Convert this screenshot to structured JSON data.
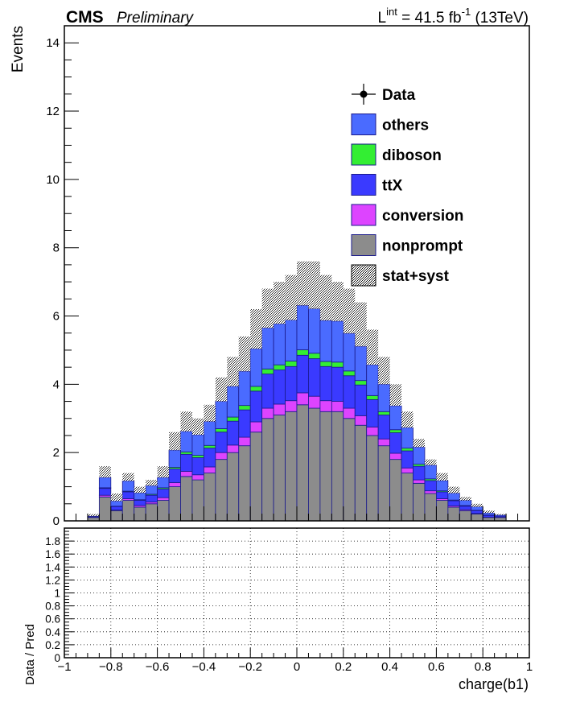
{
  "header": {
    "experiment": "CMS",
    "status": "Preliminary",
    "lumi_prefix": "L",
    "lumi_sup": "int",
    "lumi_value": " = 41.5 fb",
    "lumi_unit_sup": "-1",
    "lumi_energy": " (13TeV)"
  },
  "chart_data": [
    {
      "type": "bar",
      "subtype": "stacked-histogram",
      "ylabel": "Events",
      "xlim": [
        -1,
        1
      ],
      "ylim": [
        0,
        14.5
      ],
      "yticks": [
        0,
        2,
        4,
        6,
        8,
        10,
        12,
        14
      ],
      "grid": false,
      "legend_position": "top-right",
      "legend": [
        {
          "label": "Data",
          "style": "marker",
          "color": "#000000"
        },
        {
          "label": "others",
          "style": "fill",
          "color": "#4a6bff"
        },
        {
          "label": "diboson",
          "style": "fill",
          "color": "#33ee33"
        },
        {
          "label": "ttX",
          "style": "fill",
          "color": "#3a3aff"
        },
        {
          "label": "conversion",
          "style": "fill",
          "color": "#dd44ff"
        },
        {
          "label": "nonprompt",
          "style": "fill",
          "color": "#8c8c8c"
        },
        {
          "label": "stat+syst",
          "style": "hatch",
          "color": "#000000"
        }
      ],
      "stack_order_bottom_to_top": [
        "nonprompt",
        "conversion",
        "ttX",
        "diboson",
        "others"
      ],
      "bin_edges": [
        -0.9,
        -0.85,
        -0.8,
        -0.75,
        -0.7,
        -0.65,
        -0.6,
        -0.55,
        -0.5,
        -0.45,
        -0.4,
        -0.35,
        -0.3,
        -0.25,
        -0.2,
        -0.15,
        -0.1,
        -0.05,
        0.0,
        0.05,
        0.1,
        0.15,
        0.2,
        0.25,
        0.3,
        0.35,
        0.4,
        0.45,
        0.5,
        0.55,
        0.6,
        0.65,
        0.7,
        0.75,
        0.8,
        0.85,
        0.9
      ],
      "series": [
        {
          "name": "nonprompt",
          "values": [
            0.1,
            0.7,
            0.3,
            0.6,
            0.4,
            0.5,
            0.6,
            1.0,
            1.3,
            1.2,
            1.4,
            1.8,
            2.0,
            2.2,
            2.6,
            3.0,
            3.1,
            3.2,
            3.4,
            3.3,
            3.2,
            3.2,
            3.0,
            2.8,
            2.5,
            2.2,
            1.8,
            1.4,
            1.1,
            0.8,
            0.6,
            0.4,
            0.3,
            0.2,
            0.1,
            0.1
          ]
        },
        {
          "name": "conversion",
          "values": [
            0.0,
            0.05,
            0.02,
            0.05,
            0.05,
            0.05,
            0.08,
            0.12,
            0.15,
            0.15,
            0.18,
            0.2,
            0.22,
            0.25,
            0.3,
            0.3,
            0.32,
            0.32,
            0.35,
            0.35,
            0.32,
            0.3,
            0.3,
            0.28,
            0.25,
            0.2,
            0.18,
            0.15,
            0.1,
            0.08,
            0.05,
            0.04,
            0.03,
            0.02,
            0.01,
            0.01
          ]
        },
        {
          "name": "ttX",
          "values": [
            0.02,
            0.2,
            0.1,
            0.2,
            0.15,
            0.2,
            0.25,
            0.4,
            0.5,
            0.5,
            0.55,
            0.6,
            0.7,
            0.8,
            0.9,
            1.0,
            1.0,
            1.0,
            1.1,
            1.1,
            1.0,
            1.0,
            0.95,
            0.9,
            0.8,
            0.7,
            0.6,
            0.5,
            0.4,
            0.3,
            0.2,
            0.15,
            0.1,
            0.08,
            0.05,
            0.03
          ]
        },
        {
          "name": "diboson",
          "values": [
            0.0,
            0.02,
            0.01,
            0.02,
            0.02,
            0.03,
            0.04,
            0.05,
            0.07,
            0.07,
            0.08,
            0.1,
            0.12,
            0.13,
            0.14,
            0.15,
            0.15,
            0.16,
            0.16,
            0.16,
            0.15,
            0.15,
            0.14,
            0.13,
            0.12,
            0.1,
            0.09,
            0.08,
            0.06,
            0.05,
            0.03,
            0.02,
            0.02,
            0.01,
            0.01,
            0.0
          ]
        },
        {
          "name": "others",
          "values": [
            0.02,
            0.3,
            0.15,
            0.3,
            0.2,
            0.25,
            0.3,
            0.5,
            0.6,
            0.6,
            0.7,
            0.8,
            0.9,
            1.0,
            1.1,
            1.2,
            1.2,
            1.2,
            1.3,
            1.3,
            1.2,
            1.2,
            1.1,
            1.0,
            0.9,
            0.8,
            0.7,
            0.6,
            0.5,
            0.4,
            0.3,
            0.2,
            0.15,
            0.1,
            0.06,
            0.03
          ]
        }
      ],
      "uncertainty": {
        "name": "stat+syst",
        "up_values": [
          0.2,
          1.6,
          0.8,
          1.4,
          1.0,
          1.2,
          1.6,
          2.6,
          3.2,
          3.0,
          3.4,
          4.2,
          4.8,
          5.4,
          6.2,
          6.8,
          7.0,
          7.2,
          7.6,
          7.6,
          7.2,
          7.0,
          6.8,
          6.4,
          5.6,
          4.8,
          4.0,
          3.2,
          2.4,
          1.8,
          1.4,
          1.0,
          0.7,
          0.5,
          0.3,
          0.2
        ]
      }
    },
    {
      "type": "line",
      "subtype": "ratio-panel",
      "ylabel": "Data / Pred",
      "xlabel": "charge(b1)",
      "xlim": [
        -1,
        1
      ],
      "ylim": [
        0,
        2
      ],
      "yticks": [
        0,
        0.2,
        0.4,
        0.6,
        0.8,
        1,
        1.2,
        1.4,
        1.6,
        1.8
      ],
      "ytick_labels": [
        "0",
        "0.2",
        "0.4",
        "0.6",
        "0.8",
        "1",
        "1.2",
        "1.4",
        "1.6",
        "1.8"
      ],
      "xticks": [
        -1,
        -0.8,
        -0.6,
        -0.4,
        -0.2,
        0,
        0.2,
        0.4,
        0.6,
        0.8,
        1
      ],
      "xtick_labels": [
        "−1",
        "−0.8",
        "−0.6",
        "−0.4",
        "−0.2",
        "0",
        "0.2",
        "0.4",
        "0.6",
        "0.8",
        "1"
      ],
      "grid": true,
      "values": []
    }
  ]
}
